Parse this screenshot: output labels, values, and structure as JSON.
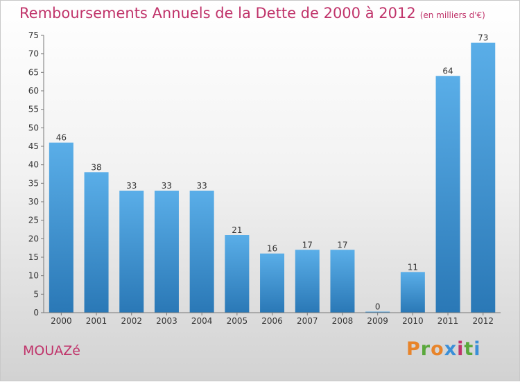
{
  "header": {
    "title": "Remboursements Annuels de la Dette de 2000 à 2012",
    "unit": "(en milliers d'€)"
  },
  "footer": {
    "city": "MOUAZé",
    "brand": "Proxiti"
  },
  "colors": {
    "title": "#c0336a",
    "bar_top": "#5aaee8",
    "bar_bottom": "#2a78b6",
    "brand_letters": [
      "#e8842a",
      "#5aa83c",
      "#e8842a",
      "#3a8fd8",
      "#c0336a",
      "#5aa83c",
      "#3a8fd8"
    ]
  },
  "chart_data": {
    "type": "bar",
    "title": "Remboursements Annuels de la Dette de 2000 à 2012",
    "xlabel": "",
    "ylabel": "",
    "categories": [
      "2000",
      "2001",
      "2002",
      "2003",
      "2004",
      "2005",
      "2006",
      "2007",
      "2008",
      "2009",
      "2010",
      "2011",
      "2012"
    ],
    "values": [
      46,
      38,
      33,
      33,
      33,
      21,
      16,
      17,
      17,
      0,
      11,
      64,
      73
    ],
    "ylim": [
      0,
      75
    ],
    "yticks": [
      0,
      5,
      10,
      15,
      20,
      25,
      30,
      35,
      40,
      45,
      50,
      55,
      60,
      65,
      70,
      75
    ],
    "grid": false,
    "legend": "none"
  }
}
